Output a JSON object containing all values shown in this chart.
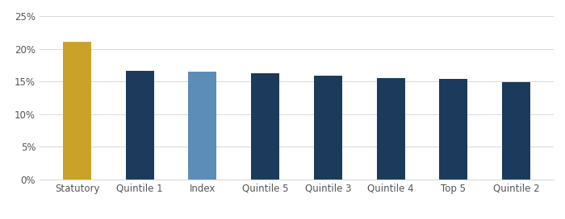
{
  "categories": [
    "Statutory",
    "Quintile 1",
    "Index",
    "Quintile 5",
    "Quintile 3",
    "Quintile 4",
    "Top 5",
    "Quintile 2"
  ],
  "values": [
    0.211,
    0.167,
    0.165,
    0.163,
    0.159,
    0.156,
    0.154,
    0.149
  ],
  "bar_colors": [
    "#C9A227",
    "#1B3A5C",
    "#5B8DB8",
    "#1B3A5C",
    "#1B3A5C",
    "#1B3A5C",
    "#1B3A5C",
    "#1B3A5C"
  ],
  "ylim": [
    0,
    0.265
  ],
  "yticks": [
    0.0,
    0.05,
    0.1,
    0.15,
    0.2,
    0.25
  ],
  "ytick_labels": [
    "0%",
    "5%",
    "10%",
    "15%",
    "20%",
    "25%"
  ],
  "background_color": "#ffffff",
  "grid_color": "#d8d8d8",
  "bar_width": 0.45,
  "figsize": [
    7.0,
    2.72
  ],
  "dpi": 100
}
